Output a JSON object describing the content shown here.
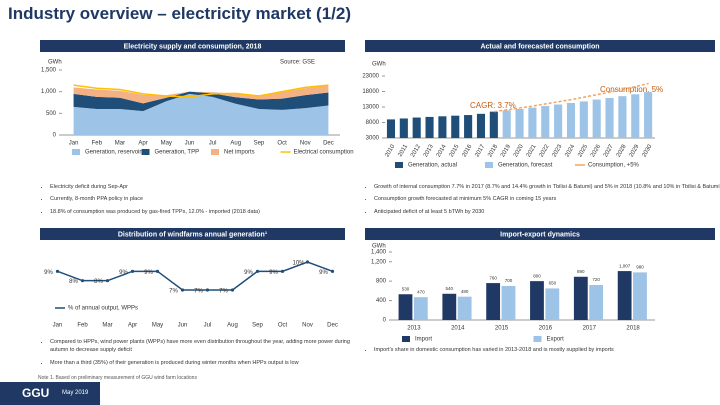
{
  "title": "Industry overview – electricity market (1/2)",
  "chart_data": [
    {
      "type": "area",
      "title": "Electricity supply and consumption, 2018",
      "y_label": "GWh",
      "source": "Source: GSE",
      "categories": [
        "Jan",
        "Feb",
        "Mar",
        "Apr",
        "May",
        "Jun",
        "Jul",
        "Aug",
        "Sep",
        "Oct",
        "Nov",
        "Dec"
      ],
      "series": [
        {
          "name": "Generation, reservoir",
          "color": "#9dc3e6",
          "values": [
            650,
            600,
            600,
            550,
            780,
            950,
            880,
            720,
            600,
            580,
            620,
            680
          ]
        },
        {
          "name": "Generation, TPP",
          "color": "#1f4e79",
          "values": [
            300,
            280,
            260,
            180,
            80,
            50,
            80,
            150,
            220,
            260,
            300,
            300
          ]
        },
        {
          "name": "Net imports",
          "color": "#f4b183",
          "values": [
            150,
            170,
            160,
            200,
            60,
            0,
            30,
            80,
            100,
            150,
            160,
            170
          ]
        },
        {
          "name": "Electrical consumption",
          "color": "#ffc000",
          "type": "line",
          "values": [
            1150,
            1080,
            1050,
            950,
            900,
            880,
            950,
            960,
            900,
            1000,
            1100,
            1150
          ]
        }
      ],
      "ylim": [
        0,
        1500
      ],
      "yticks": [
        0,
        500,
        {
          "value": 1000,
          "label": "1,000"
        },
        {
          "value": 1500,
          "label": "1,500"
        }
      ],
      "grid": false
    },
    {
      "type": "bar",
      "title": "Actual and forecasted consumption",
      "y_label": "GWh",
      "annotations": [
        "CAGR: 3.7%",
        "Consumption, 5%"
      ],
      "categories": [
        "2010",
        "2011",
        "2012",
        "2013",
        "2014",
        "2015",
        "2016",
        "2017",
        "2018",
        "2019",
        "2020",
        "2021",
        "2022",
        "2023",
        "2024",
        "2025",
        "2026",
        "2027",
        "2028",
        "2029",
        "2030"
      ],
      "series": [
        {
          "name": "Generation, actual",
          "color": "#1f4e79",
          "values": [
            9000,
            9300,
            9600,
            9800,
            10000,
            10200,
            10400,
            10800,
            11500,
            null,
            null,
            null,
            null,
            null,
            null,
            null,
            null,
            null,
            null,
            null,
            null
          ]
        },
        {
          "name": "Generation, forecast",
          "color": "#9dc3e6",
          "values": [
            null,
            null,
            null,
            null,
            null,
            null,
            null,
            null,
            null,
            11900,
            12350,
            12800,
            13300,
            13800,
            14300,
            14800,
            15400,
            15900,
            16500,
            17100,
            17800
          ]
        },
        {
          "name": "Consumption, +5%",
          "color": "#f4a460",
          "type": "line",
          "values": [
            null,
            null,
            null,
            null,
            null,
            null,
            null,
            null,
            11500,
            12100,
            12700,
            13300,
            14000,
            14700,
            15400,
            16200,
            17000,
            17800,
            18700,
            19600,
            20600
          ]
        }
      ],
      "ylim": [
        3000,
        23000
      ],
      "yticks": [
        3000,
        8000,
        13000,
        18000,
        23000
      ],
      "grid": false
    },
    {
      "type": "line",
      "title": "Distribution of windfarms annual generation¹",
      "categories": [
        "Jan",
        "Feb",
        "Mar",
        "Apr",
        "May",
        "Jun",
        "Jul",
        "Aug",
        "Sep",
        "Oct",
        "Nov",
        "Dec"
      ],
      "series": [
        {
          "name": "% of annual output, WPPs",
          "color": "#1f4e79",
          "values": [
            9,
            8,
            8,
            9,
            9,
            7,
            7,
            7,
            9,
            9,
            10,
            9
          ],
          "value_labels": [
            "9%",
            "8%",
            "8%",
            "9%",
            "9%",
            "7%",
            "7%",
            "7%",
            "9%",
            "9%",
            "10%",
            "9%"
          ]
        }
      ]
    },
    {
      "type": "bar",
      "title": "Import-export dynamics",
      "y_label": "GWh",
      "categories": [
        "2013",
        "2014",
        "2015",
        "2016",
        "2017",
        "2018"
      ],
      "series": [
        {
          "name": "Import",
          "color": "#1f3864",
          "values": [
            530,
            540,
            760,
            800,
            890,
            1007
          ],
          "value_labels": [
            "530",
            "540",
            "760",
            "800",
            "890",
            "1,007"
          ]
        },
        {
          "name": "Export",
          "color": "#9dc3e6",
          "values": [
            470,
            480,
            700,
            650,
            720,
            980
          ],
          "value_labels": [
            "470",
            "480",
            "700",
            "650",
            "720",
            "980"
          ]
        }
      ],
      "ylim": [
        0,
        1400
      ],
      "yticks": [
        0,
        400,
        800,
        {
          "value": 1200,
          "label": "1,200"
        },
        {
          "value": 1400,
          "label": "1,400"
        }
      ],
      "grid": false
    }
  ],
  "notes": {
    "supply": [
      "Electricity deficit during Sep-Apr",
      "Currently, 8-month PPA policy in place",
      "18.8% of consumption was produced by gas-fired TPPs, 12.0% - imported (2018 data)"
    ],
    "consumption": [
      "Growth of internal consumption 7.7% in 2017 (8.7% and 14.4% growth in Tbilisi & Batumi) and 5% in 2018 (10.8% and 10% in Tbilisi & Batumi)",
      "Consumption growth forecasted at minimum 5% CAGR in coming 15 years",
      "Anticipated deficit of at least 5 bTWh by 2030"
    ],
    "wind": [
      "Compared to HPPs, wind power plants (WPPs) have more even distribution throughout the year, adding more power during autumn to decrease supply deficit",
      "More than a third (35%) of their generation is produced during winter months when HPPs output is low"
    ],
    "trade": [
      "Import's share in domestic consumption has varied in 2013-2018 and is mostly supplied by imports"
    ]
  },
  "footnote": "Note 1. Based on preliminary measurement of GGU wind farm locations",
  "footer": {
    "logo": "GGU",
    "date": "May 2019"
  }
}
